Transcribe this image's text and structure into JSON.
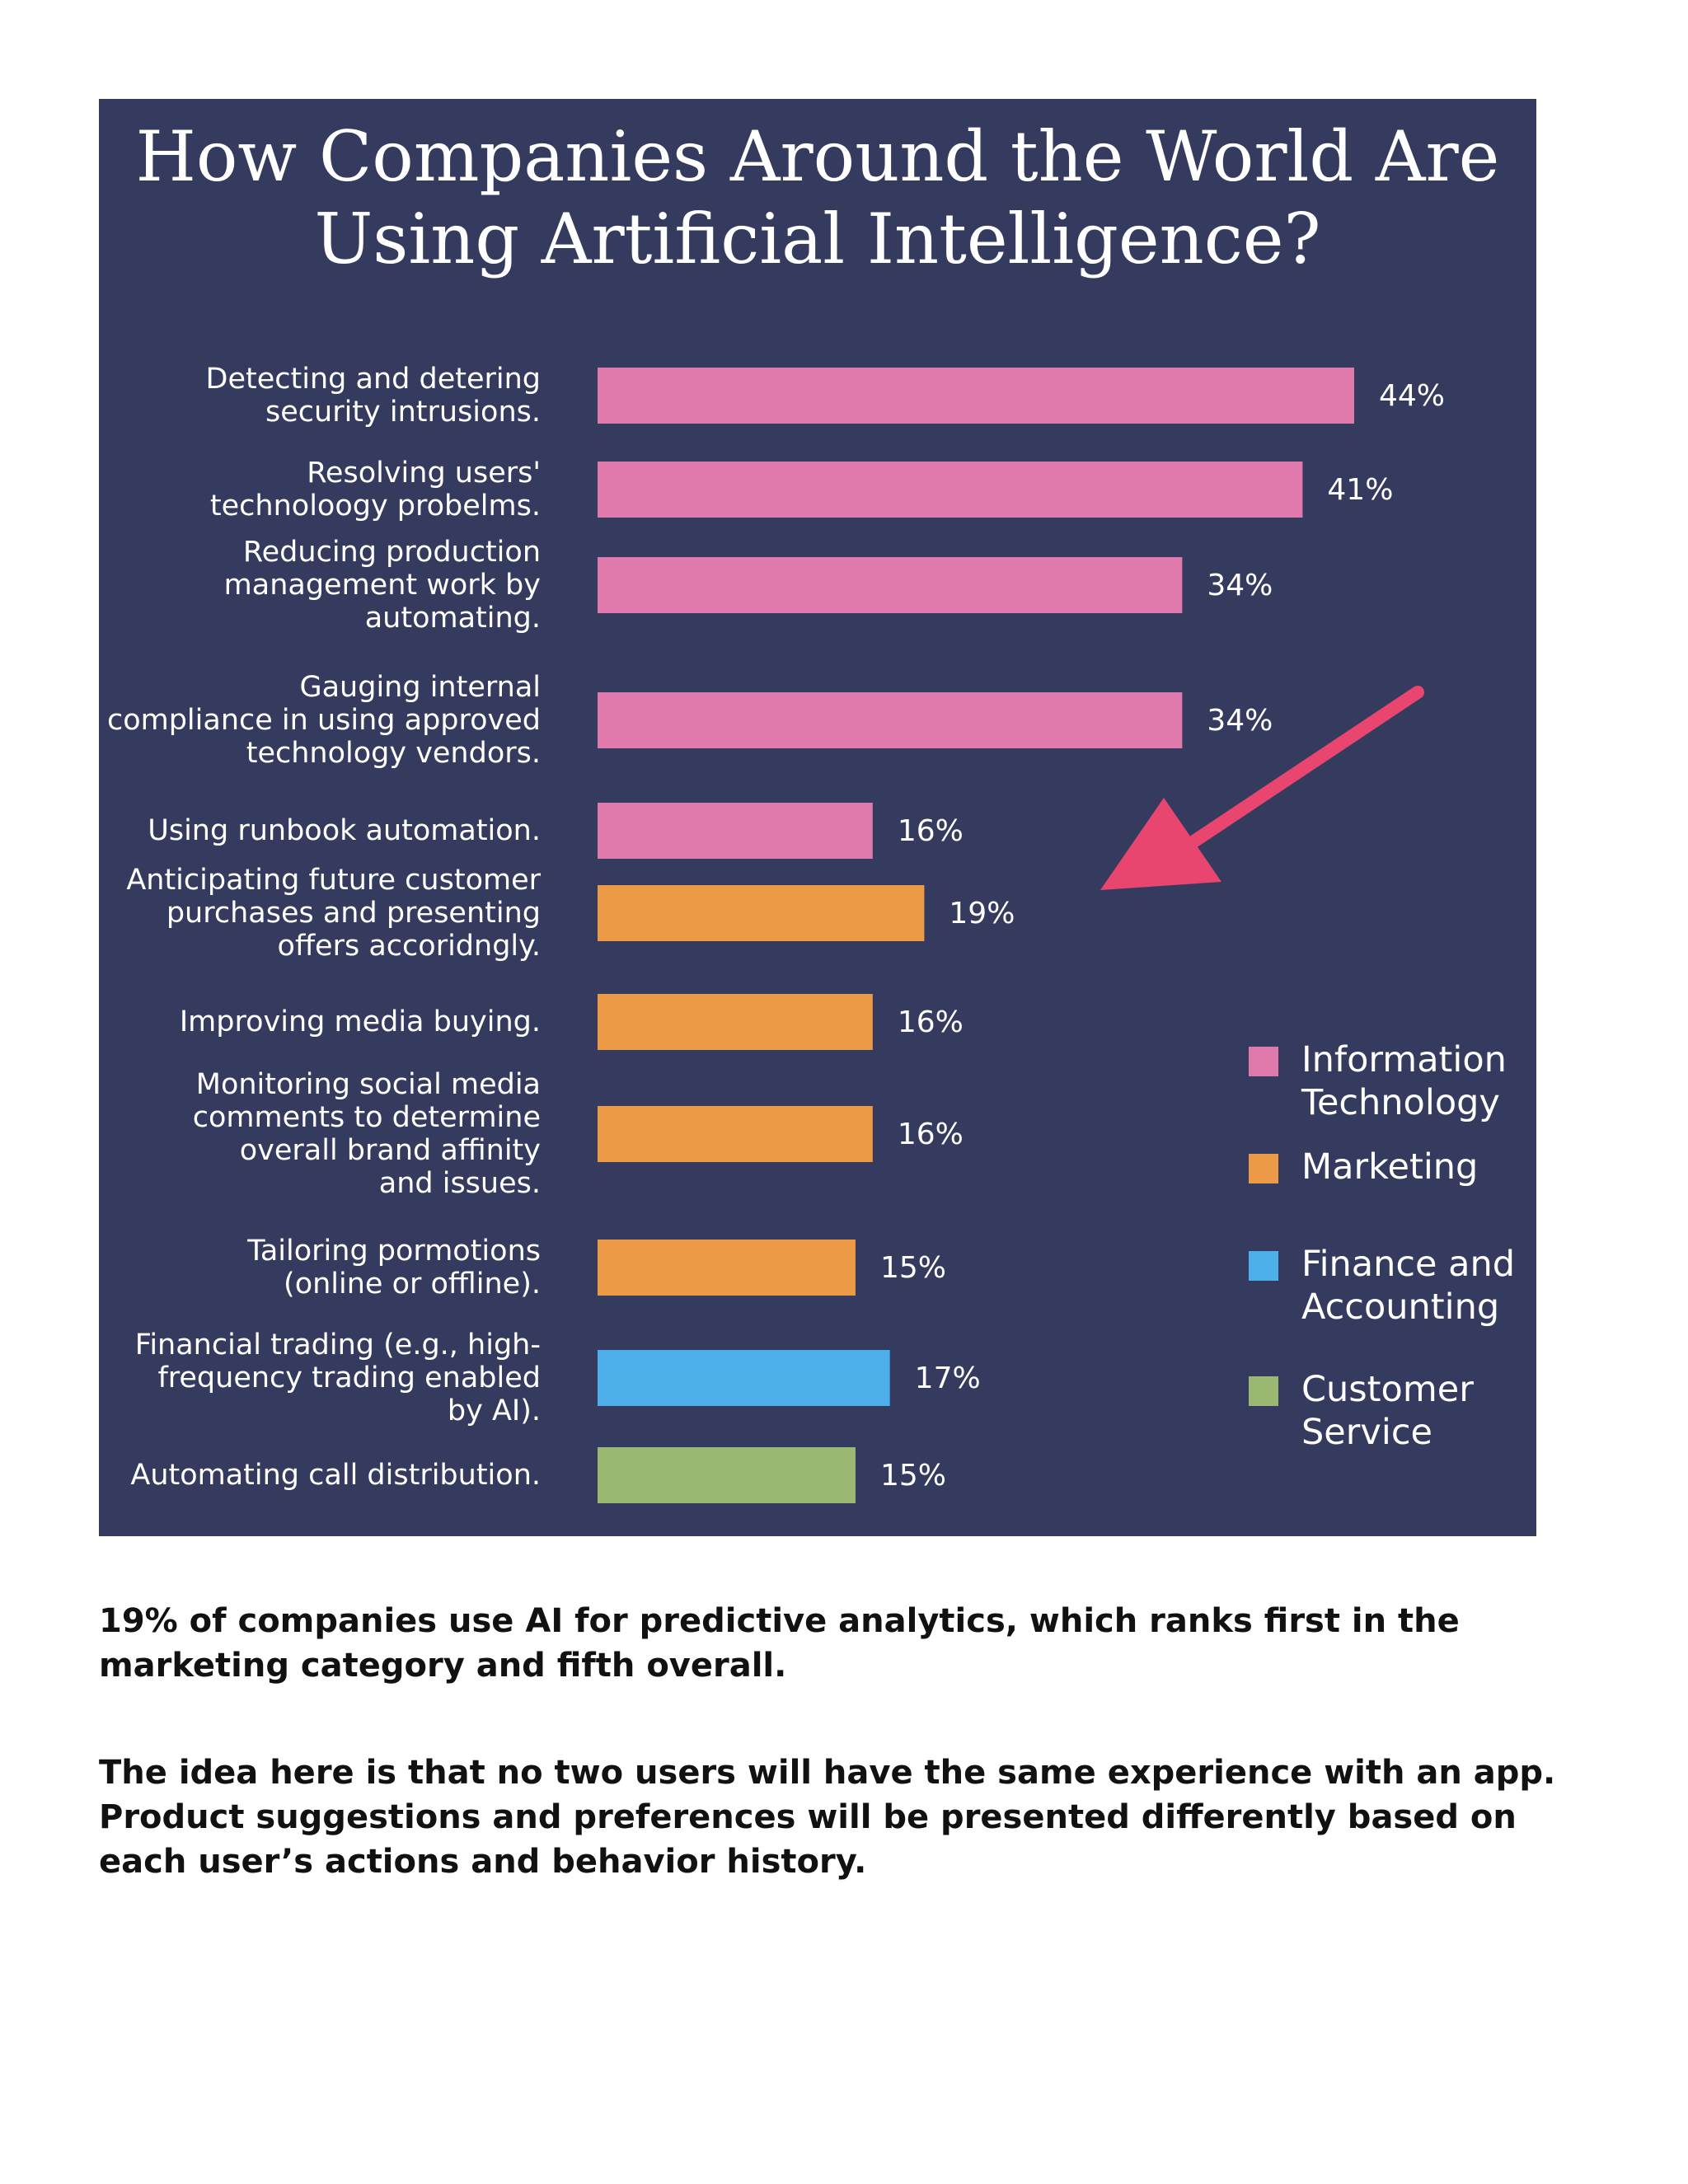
{
  "chart_data": {
    "type": "bar",
    "orientation": "horizontal",
    "title": "How Companies Around the World Are\nUsing Artificial Intelligence?",
    "xlabel": "",
    "ylabel": "",
    "xlim": [
      0,
      44
    ],
    "grid": false,
    "legend_position": "right",
    "unit": "%",
    "categories": [
      "Detecting and detering\nsecurity intrusions.",
      "Resolving users'\ntechnoloogy probelms.",
      "Reducing production\nmanagement work by\nautomating.",
      "Gauging internal\ncompliance in using approved\ntechnology vendors.",
      "Using runbook automation.",
      "Anticipating future customer\npurchases and presenting\noffers accoridngly.",
      "Improving media buying.",
      "Monitoring social media\ncomments to determine\noverall brand affinity\nand issues.",
      "Tailoring pormotions\n(online or offline).",
      "Financial trading (e.g., high-\nfrequency trading enabled\nby AI).",
      "Automating call distribution."
    ],
    "values": [
      44,
      41,
      34,
      34,
      16,
      19,
      16,
      16,
      15,
      17,
      15
    ],
    "value_labels": [
      "44%",
      "41%",
      "34%",
      "34%",
      "16%",
      "19%",
      "16%",
      "16%",
      "15%",
      "17%",
      "15%"
    ],
    "bar_group": [
      "Information Technology",
      "Information Technology",
      "Information Technology",
      "Information Technology",
      "Information Technology",
      "Marketing",
      "Marketing",
      "Marketing",
      "Marketing",
      "Finance and Accounting",
      "Customer Service"
    ],
    "legend": [
      {
        "label": "Information\nTechnology",
        "color": "#e07aad"
      },
      {
        "label": "Marketing",
        "color": "#ec9a45"
      },
      {
        "label": "Finance and\nAccounting",
        "color": "#4db0ea"
      },
      {
        "label": "Customer\nService",
        "color": "#9bb872"
      }
    ],
    "annotation": {
      "type": "arrow",
      "points_to": "Anticipating future customer purchases and presenting offers accoridngly.",
      "color": "#e8456f"
    }
  },
  "colors": {
    "background": "#353b5e",
    "Information Technology": "#e07aad",
    "Marketing": "#ec9a45",
    "Finance and Accounting": "#4db0ea",
    "Customer Service": "#9bb872"
  },
  "text": {
    "paragraph_1": "19% of companies use AI for predictive analytics, which ranks first in the marketing category and fifth overall.",
    "paragraph_2": "The idea here is that no two users will have the same experience with an app. Product suggestions and preferences will be presented differently based on each user’s actions and behavior history."
  }
}
